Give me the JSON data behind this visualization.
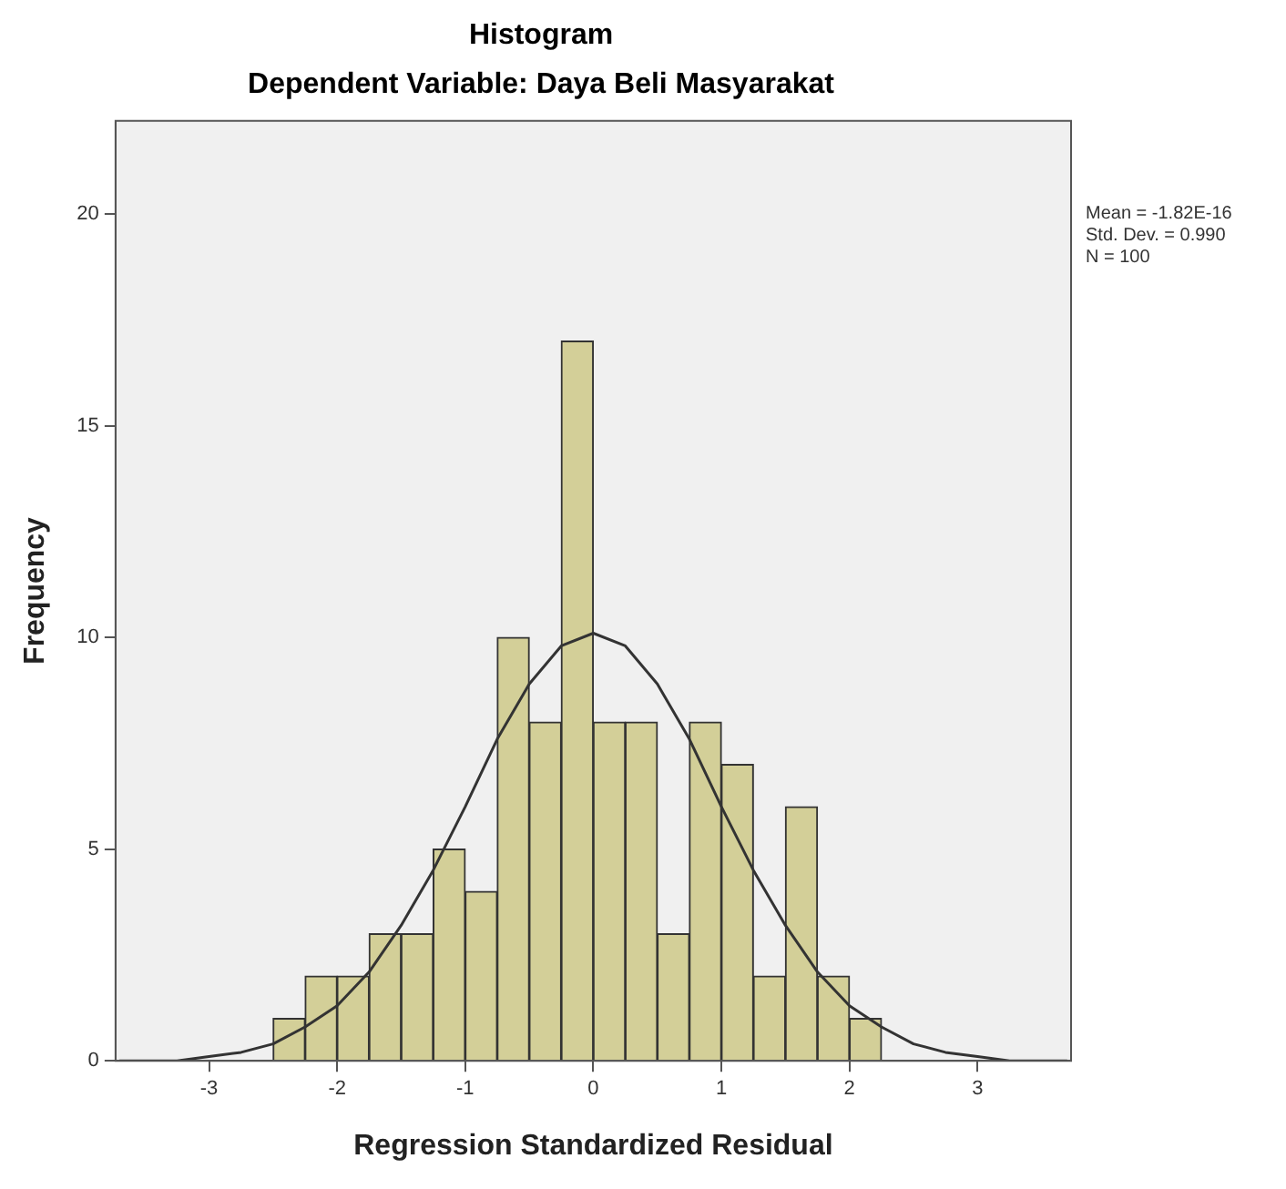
{
  "chart_data": {
    "type": "histogram",
    "title": "Histogram",
    "subtitle": "Dependent Variable: Daya Beli Masyarakat",
    "xlabel": "Regression Standardized Residual",
    "ylabel": "Frequency",
    "bins": [
      -2.5,
      -2.25,
      -2,
      -1.75,
      -1.5,
      -1.25,
      -1,
      -0.75,
      -0.5,
      -0.25,
      0,
      0.25,
      0.5,
      0.75,
      1,
      1.25,
      1.5,
      1.75,
      2,
      2.25
    ],
    "values": [
      1,
      2,
      2,
      3,
      3,
      5,
      4,
      10,
      8,
      17,
      8,
      8,
      3,
      8,
      7,
      2,
      6,
      2,
      1
    ],
    "color": "#d3cf98",
    "series": [
      {
        "type": "line",
        "color": "#333333",
        "x": [
          -3.7,
          -3.5,
          -3.25,
          -3,
          -2.75,
          -2.5,
          -2.25,
          -2,
          -1.75,
          -1.5,
          -1.25,
          -1,
          -0.75,
          -0.5,
          -0.25,
          0,
          0.25,
          0.5,
          0.75,
          1,
          1.25,
          1.5,
          1.75,
          2,
          2.25,
          2.5,
          2.75,
          3,
          3.25,
          3.5,
          3.7
        ],
        "values": [
          0,
          0,
          0,
          0.1,
          0.2,
          0.4,
          0.8,
          1.3,
          2.1,
          3.2,
          4.5,
          6.0,
          7.6,
          8.9,
          9.8,
          10.1,
          9.8,
          8.9,
          7.6,
          6.0,
          4.5,
          3.2,
          2.1,
          1.3,
          0.8,
          0.4,
          0.2,
          0.1,
          0,
          0,
          0
        ]
      }
    ],
    "xlim": [
      -3.73,
      3.73
    ],
    "xticks": [
      -3,
      -2,
      -1,
      0,
      1,
      2,
      3
    ],
    "ylim": [
      0,
      22.2
    ],
    "yticks": [
      0,
      5,
      10,
      15,
      20
    ],
    "grid": false,
    "legend": false,
    "marker": "none",
    "annotations": [
      "Mean = -1.82E-16",
      "Std. Dev. = 0.990",
      "N = 100"
    ]
  }
}
